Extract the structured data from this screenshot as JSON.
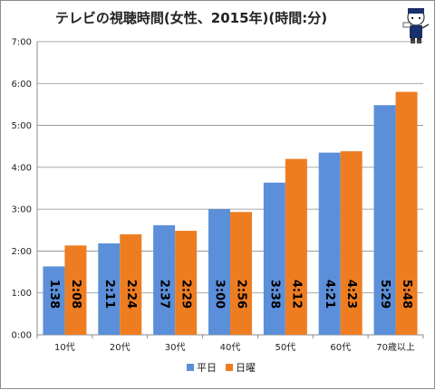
{
  "chart_data": {
    "type": "bar",
    "title": "テレビの視聴時間(女性、2015年)(時間:分)",
    "categories": [
      "10代",
      "20代",
      "30代",
      "40代",
      "50代",
      "60代",
      "70歳以上"
    ],
    "series": [
      {
        "name": "平日",
        "color": "#5b8fd9",
        "values": [
          1.633,
          2.183,
          2.617,
          3.0,
          3.633,
          4.35,
          5.483
        ],
        "labels": [
          "1:38",
          "2:11",
          "2:37",
          "3:00",
          "3:38",
          "4:21",
          "5:29"
        ]
      },
      {
        "name": "日曜",
        "color": "#ee7d22",
        "values": [
          2.133,
          2.4,
          2.483,
          2.933,
          4.2,
          4.383,
          5.8
        ],
        "labels": [
          "2:08",
          "2:24",
          "2:29",
          "2:56",
          "4:12",
          "4:23",
          "5:48"
        ]
      }
    ],
    "ylim": [
      0,
      7
    ],
    "yticks": [
      "0:00",
      "1:00",
      "2:00",
      "3:00",
      "4:00",
      "5:00",
      "6:00",
      "7:00"
    ],
    "grid": true,
    "legend": "bottom"
  },
  "logo": {
    "name": "mascot-logo-icon"
  }
}
